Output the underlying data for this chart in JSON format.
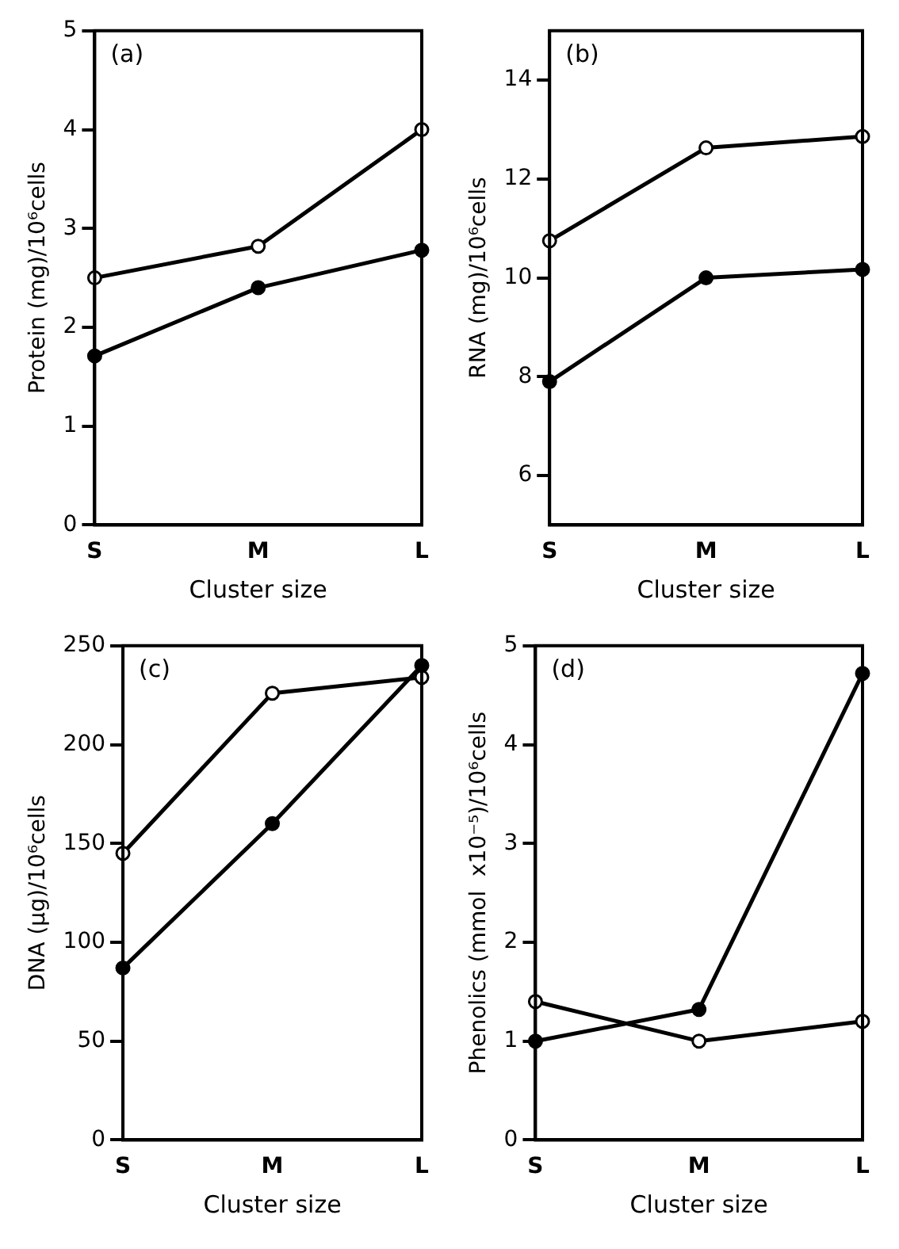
{
  "chart_data": [
    {
      "type": "line",
      "annotations": [
        "(a)"
      ],
      "xlabel": "Cluster size",
      "ylabel": "Protein (mg)/10⁶cells",
      "categories": [
        "S",
        "M",
        "L"
      ],
      "series": [
        {
          "color": "#000000",
          "values": [
            2.5,
            2.82,
            4.0
          ]
        },
        {
          "color": "#000000",
          "values": [
            1.71,
            2.4,
            2.78
          ]
        }
      ],
      "ylim": [
        0,
        5
      ],
      "yticks": [
        0,
        1,
        2,
        3,
        4,
        5
      ],
      "marker": "circle",
      "grid": false,
      "legend": false
    },
    {
      "type": "line",
      "annotations": [
        "(b)"
      ],
      "xlabel": "Cluster size",
      "ylabel": "RNA (mg)/10⁶cells",
      "categories": [
        "S",
        "M",
        "L"
      ],
      "series": [
        {
          "color": "#000000",
          "values": [
            10.75,
            12.63,
            12.86
          ]
        },
        {
          "color": "#000000",
          "values": [
            7.9,
            10.0,
            10.17
          ]
        }
      ],
      "ylim": [
        5,
        15
      ],
      "yticks": [
        6,
        8,
        10,
        12,
        14
      ],
      "marker": "circle",
      "grid": false,
      "legend": false
    },
    {
      "type": "line",
      "annotations": [
        "(c)"
      ],
      "xlabel": "Cluster size",
      "ylabel": "DNA (μg)/10⁶cells",
      "categories": [
        "S",
        "M",
        "L"
      ],
      "series": [
        {
          "color": "#000000",
          "values": [
            145,
            226,
            234
          ]
        },
        {
          "color": "#000000",
          "values": [
            87,
            160,
            240
          ]
        }
      ],
      "ylim": [
        0,
        250
      ],
      "yticks": [
        0,
        50,
        100,
        150,
        200,
        250
      ],
      "marker": "circle",
      "grid": false,
      "legend": false
    },
    {
      "type": "line",
      "annotations": [
        "(d)"
      ],
      "xlabel": "Cluster size",
      "ylabel": "Phenolics (mmol  x10⁻⁵)/10⁶cells",
      "categories": [
        "S",
        "M",
        "L"
      ],
      "series": [
        {
          "color": "#000000",
          "values": [
            1.4,
            1.0,
            1.2
          ]
        },
        {
          "color": "#000000",
          "values": [
            1.0,
            1.32,
            4.72
          ]
        }
      ],
      "ylim": [
        0,
        5
      ],
      "yticks": [
        0,
        1,
        2,
        3,
        4,
        5
      ],
      "marker": "circle",
      "grid": false,
      "legend": false
    }
  ]
}
